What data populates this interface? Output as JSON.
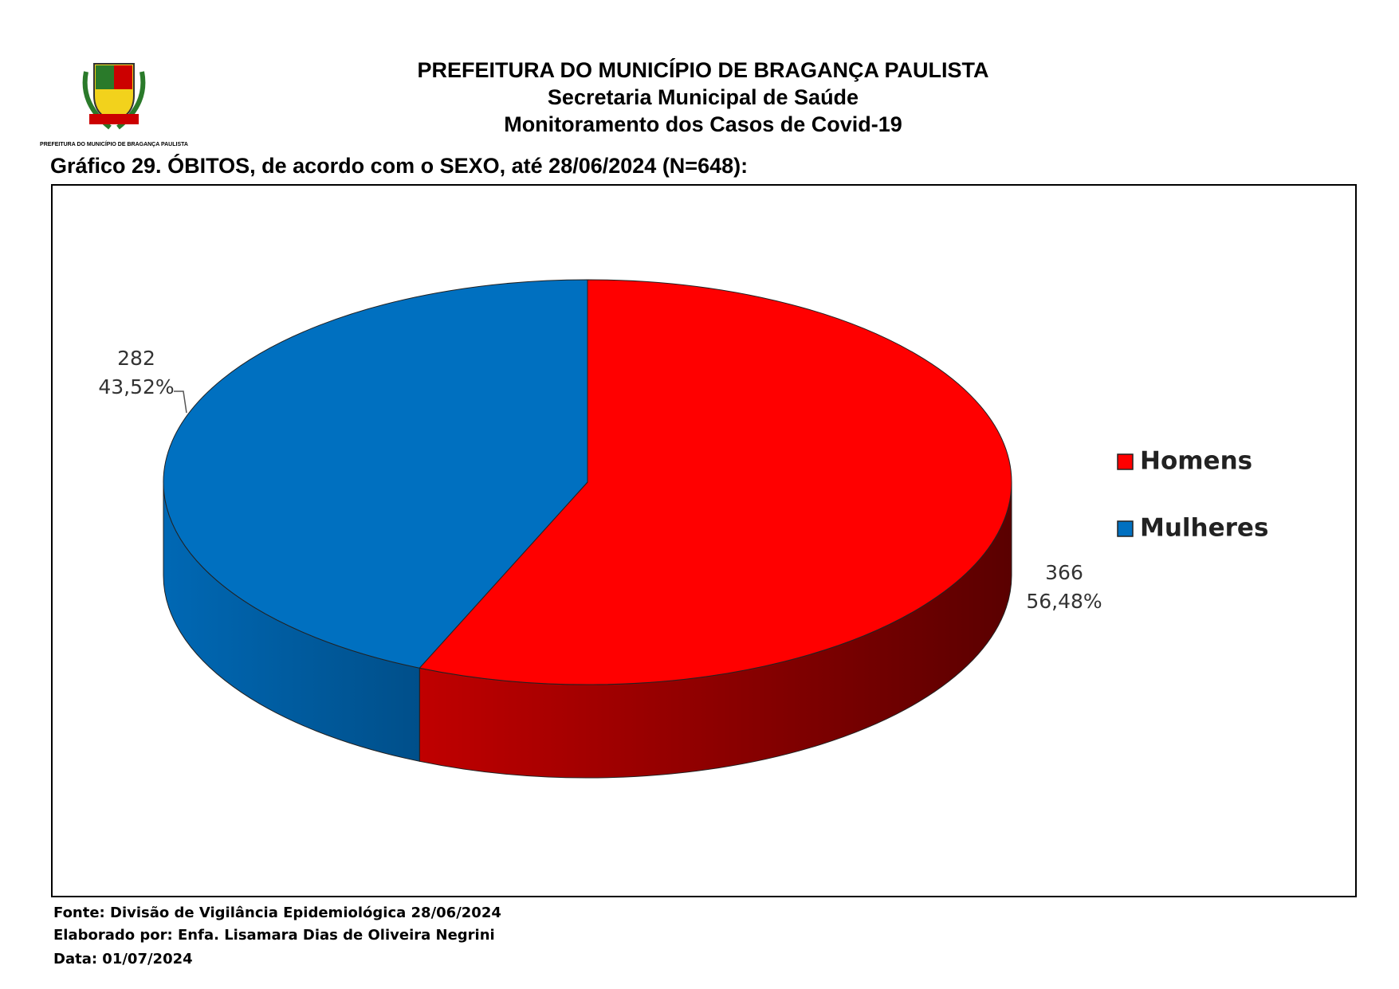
{
  "header": {
    "logo_caption": "PREFEITURA DO MUNICÍPIO DE BRAGANÇA PAULISTA",
    "title": "PREFEITURA DO MUNICÍPIO DE BRAGANÇA PAULISTA",
    "subtitle": "Secretaria Municipal de Saúde",
    "subtitle2": "Monitoramento dos Casos de Covid-19"
  },
  "chart_data": {
    "type": "pie",
    "title": "Gráfico 29. ÓBITOS, de acordo com o SEXO, até 28/06/2024 (N=648):",
    "categories": [
      "Homens",
      "Mulheres"
    ],
    "values": [
      366,
      282
    ],
    "percentages": [
      56.48,
      43.52
    ],
    "percentage_labels": [
      "56,48%",
      "43,52%"
    ],
    "colors": [
      "#ff0000",
      "#0070c0"
    ],
    "legend": "right"
  },
  "footer": {
    "lines": [
      "Fonte: Divisão de Vigilância Epidemiológica 28/06/2024",
      "Elaborado por: Enfa. Lisamara Dias de Oliveira Negrini",
      "Data: 01/07/2024"
    ]
  }
}
